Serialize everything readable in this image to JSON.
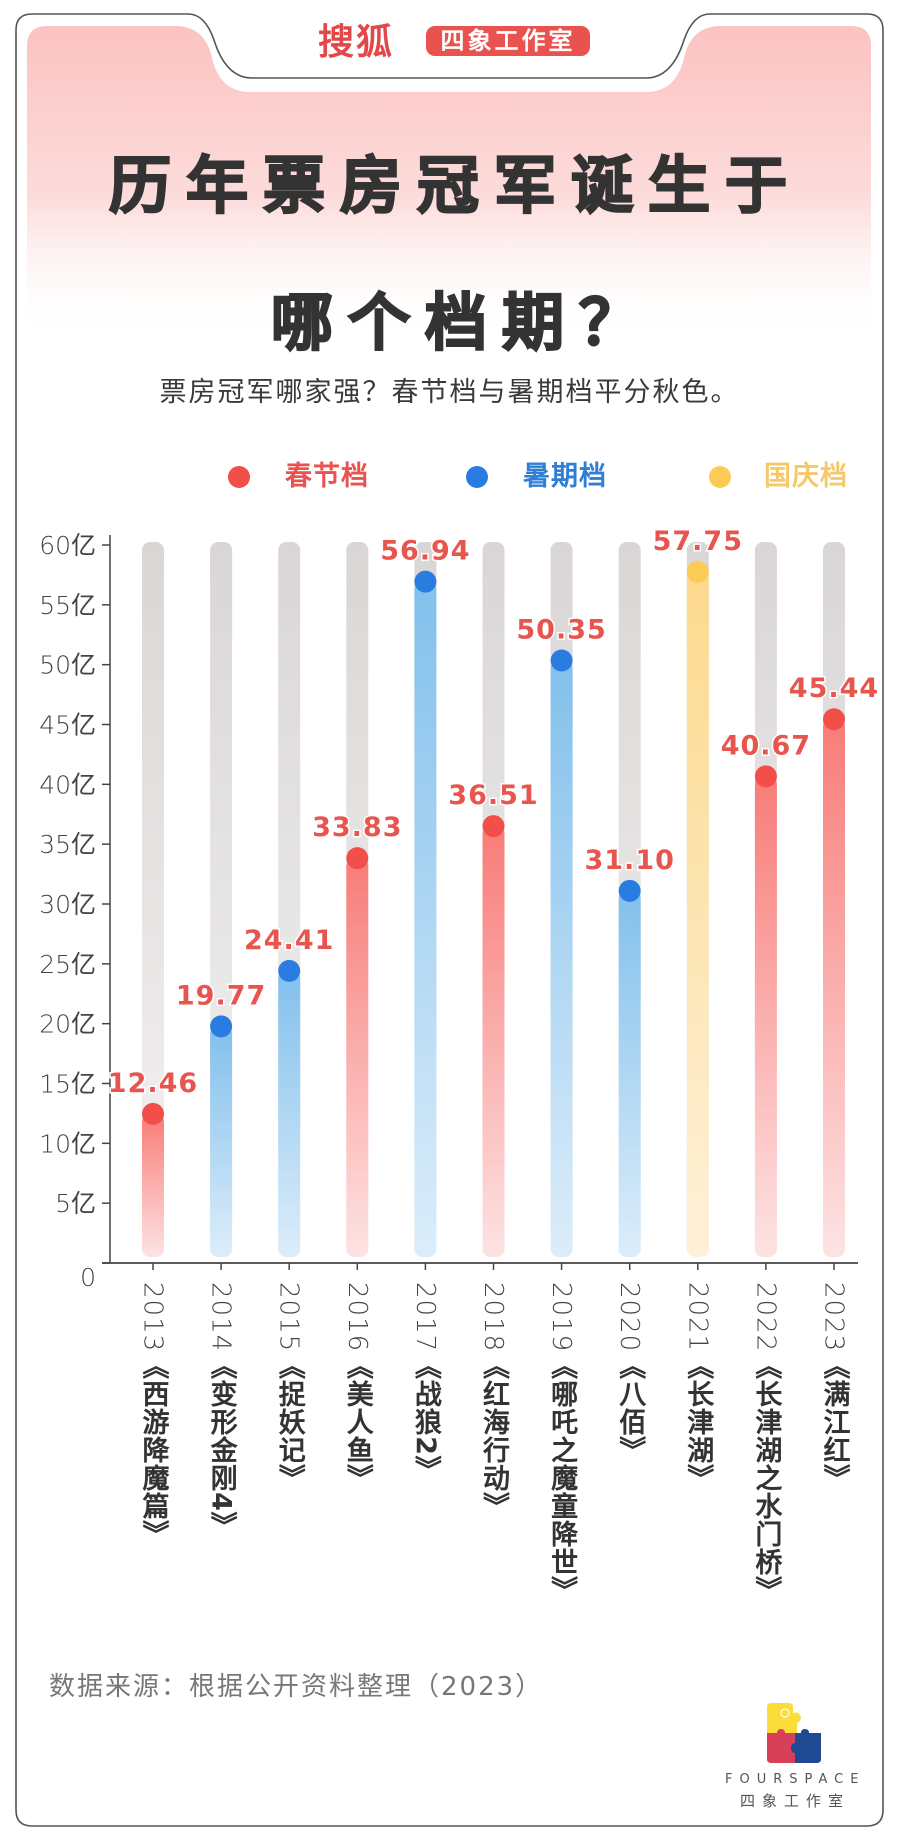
{
  "header": {
    "brand": "搜狐",
    "badge": "四象工作室"
  },
  "title": {
    "line1": "历年票房冠军诞生于",
    "line2": "哪个档期？"
  },
  "subtitle": "票房冠军哪家强？春节档与暑期档平分秋色。",
  "colors": {
    "spring": "#f24e4a",
    "summer": "#2a7de0",
    "national": "#fccb55",
    "label": "#e8554e",
    "track": "#dcd8d8",
    "bg_pink": "#fbc6c4"
  },
  "legend": [
    {
      "key": "spring",
      "label": "春节档",
      "color": "#f24e4a",
      "text_color": "#e9524e"
    },
    {
      "key": "summer",
      "label": "暑期档",
      "color": "#2a7de0",
      "text_color": "#2f7fd6"
    },
    {
      "key": "national",
      "label": "国庆档",
      "color": "#fccb55",
      "text_color": "#f5c96a"
    }
  ],
  "chart_data": {
    "type": "bar",
    "title": "历年票房冠军诞生于哪个档期？",
    "subtitle": "票房冠军哪家强？春节档与暑期档平分秋色。",
    "xlabel": "",
    "ylabel": "",
    "ylim": [
      0,
      60
    ],
    "yticks": [
      0,
      5,
      10,
      15,
      20,
      25,
      30,
      35,
      40,
      45,
      50,
      55,
      60
    ],
    "ytick_labels": [
      "0",
      "5亿",
      "10亿",
      "15亿",
      "20亿",
      "25亿",
      "30亿",
      "35亿",
      "40亿",
      "45亿",
      "50亿",
      "55亿",
      "60亿"
    ],
    "unit": "亿",
    "grid": false,
    "legend_position": "top-center",
    "categories": [
      {
        "year": "2013",
        "film": "《西游降魔篇》"
      },
      {
        "year": "2014",
        "film": "《变形金刚4》"
      },
      {
        "year": "2015",
        "film": "《捉妖记》"
      },
      {
        "year": "2016",
        "film": "《美人鱼》"
      },
      {
        "year": "2017",
        "film": "《战狼2》"
      },
      {
        "year": "2018",
        "film": "《红海行动》"
      },
      {
        "year": "2019",
        "film": "《哪吒之魔童降世》"
      },
      {
        "year": "2020",
        "film": "《八佰》"
      },
      {
        "year": "2021",
        "film": "《长津湖》"
      },
      {
        "year": "2022",
        "film": "《长津湖之水门桥》"
      },
      {
        "year": "2023",
        "film": "《满江红》"
      }
    ],
    "values": [
      12.46,
      19.77,
      24.41,
      33.83,
      56.94,
      36.51,
      50.35,
      31.1,
      57.75,
      40.67,
      45.44
    ],
    "value_labels": [
      "12.46",
      "19.77",
      "24.41",
      "33.83",
      "56.94",
      "36.51",
      "50.35",
      "31.10",
      "57.75",
      "40.67",
      "45.44"
    ],
    "season": [
      "spring",
      "summer",
      "summer",
      "spring",
      "summer",
      "spring",
      "summer",
      "summer",
      "national",
      "spring",
      "spring"
    ],
    "series": [
      {
        "name": "春节档",
        "key": "spring"
      },
      {
        "name": "暑期档",
        "key": "summer"
      },
      {
        "name": "国庆档",
        "key": "national"
      }
    ]
  },
  "footer": {
    "source": "数据来源：根据公开资料整理（2023）",
    "logo_en": "FOURSPACE",
    "logo_cn": "四象工作室"
  }
}
